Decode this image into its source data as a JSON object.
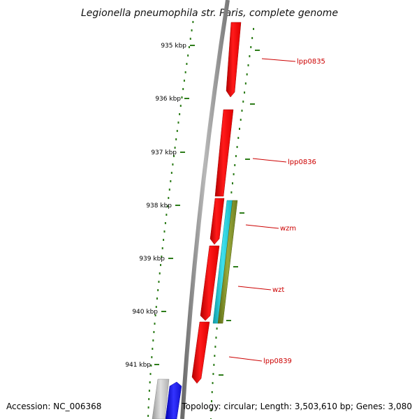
{
  "title": "Legionella pneumophila str. Paris, complete genome",
  "accession_text": "Accession: NC_006368",
  "summary_text": "Topology: circular; Length: 3,503,610 bp; Genes: 3,080",
  "colors": {
    "backbone": "#8c8c8c",
    "tick": "#2e7d1a",
    "label_line": "#cc0000",
    "label_text": "#cc0000",
    "gene_red": "#ff0000",
    "gene_cyan": "#22c9d6",
    "gene_olive": "#7d8c2a",
    "gene_blue": "#1a1aff",
    "gene_gray": "#bdbdbd"
  },
  "ticks": [
    {
      "label": "935 kbp"
    },
    {
      "label": "936 kbp"
    },
    {
      "label": "937 kbp"
    },
    {
      "label": "938 kbp"
    },
    {
      "label": "939 kbp"
    },
    {
      "label": "940 kbp"
    },
    {
      "label": "941 kbp"
    }
  ],
  "genes": [
    {
      "label": "lpp0835"
    },
    {
      "label": "lpp0836"
    },
    {
      "label": "wzm"
    },
    {
      "label": "wzt"
    },
    {
      "label": "lpp0839"
    }
  ]
}
